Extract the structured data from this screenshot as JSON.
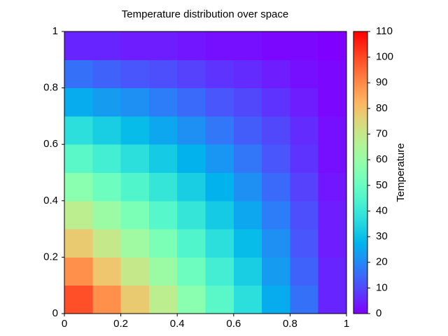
{
  "chart_data": {
    "type": "heatmap",
    "title": "Temperature distribution over space",
    "x": [
      0.05,
      0.15,
      0.25,
      0.35,
      0.45,
      0.55,
      0.65,
      0.75,
      0.85,
      0.95
    ],
    "y": [
      0.05,
      0.15,
      0.25,
      0.35,
      0.45,
      0.55,
      0.65,
      0.75,
      0.85,
      0.95
    ],
    "values": [
      [
        99,
        89,
        78,
        68,
        57,
        47,
        37,
        26,
        16,
        5
      ],
      [
        89,
        79,
        70,
        61,
        51,
        42,
        33,
        23,
        14,
        5
      ],
      [
        78,
        70,
        62,
        54,
        45,
        37,
        29,
        21,
        12,
        4
      ],
      [
        68,
        61,
        54,
        46,
        39,
        32,
        25,
        18,
        11,
        4
      ],
      [
        57,
        51,
        45,
        39,
        33,
        27,
        21,
        15,
        9,
        3
      ],
      [
        47,
        42,
        37,
        32,
        27,
        22,
        17,
        12,
        7,
        2
      ],
      [
        37,
        33,
        29,
        25,
        21,
        17,
        13,
        10,
        6,
        2
      ],
      [
        26,
        23,
        21,
        18,
        15,
        12,
        10,
        7,
        4,
        1
      ],
      [
        16,
        14,
        12,
        11,
        9,
        7,
        6,
        4,
        2,
        1
      ],
      [
        5,
        5,
        4,
        4,
        3,
        2,
        2,
        1,
        1,
        0
      ]
    ],
    "xlim": [
      0,
      1
    ],
    "ylim": [
      0,
      1
    ],
    "xticks": [
      0,
      0.2,
      0.4,
      0.6,
      0.8,
      1
    ],
    "yticks": [
      0,
      0.2,
      0.4,
      0.6,
      0.8,
      1
    ],
    "colormap": "rainbow",
    "clim": [
      0,
      110
    ],
    "cticks": [
      0,
      10,
      20,
      30,
      40,
      50,
      60,
      70,
      80,
      90,
      100,
      110
    ],
    "colorbar_label": "Temperature"
  }
}
